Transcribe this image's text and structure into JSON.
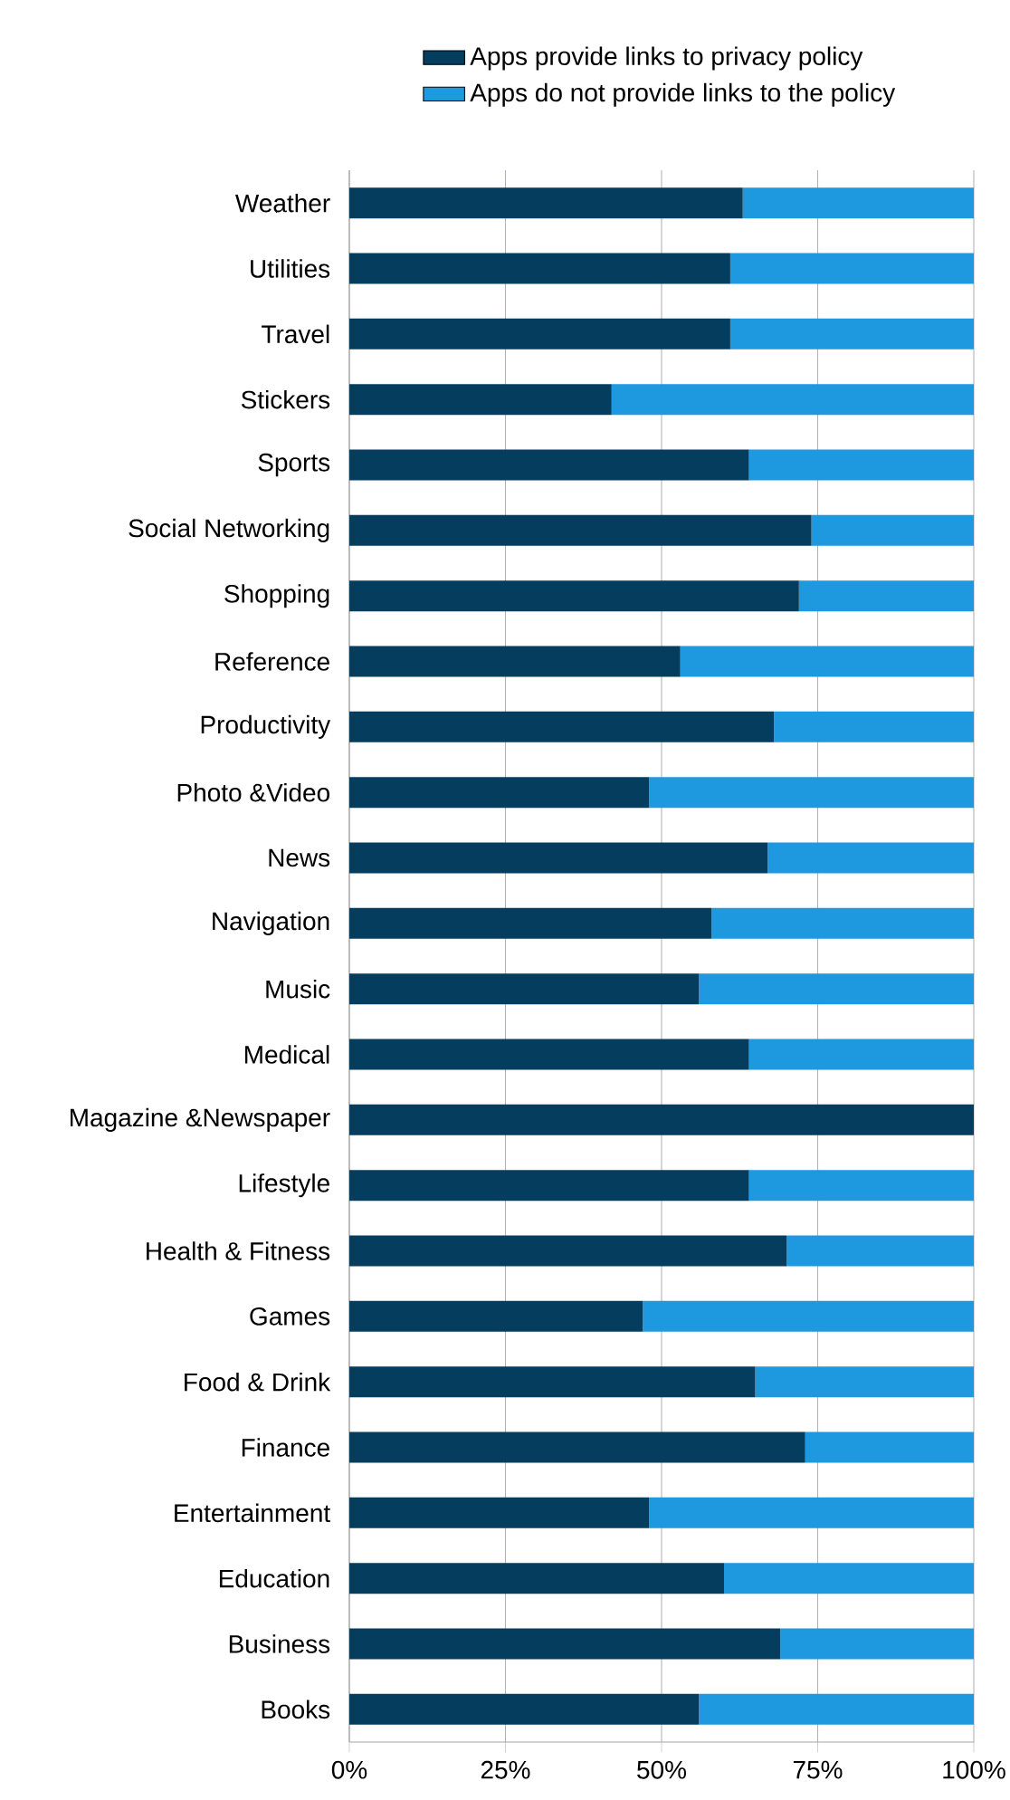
{
  "chart_data": {
    "type": "bar",
    "orientation": "horizontal",
    "stacked": true,
    "categories": [
      "Weather",
      "Utilities",
      "Travel",
      "Stickers",
      "Sports",
      "Social Networking",
      "Shopping",
      "Reference",
      "Productivity",
      "Photo &Video",
      "News",
      "Navigation",
      "Music",
      "Medical",
      "Magazine &Newspaper",
      "Lifestyle",
      "Health & Fitness",
      "Games",
      "Food & Drink",
      "Finance",
      "Entertainment",
      "Education",
      "Business",
      "Books"
    ],
    "series": [
      {
        "name": "Apps provide links to privacy policy",
        "color": "#053d5f",
        "values": [
          63,
          61,
          61,
          42,
          64,
          74,
          72,
          53,
          68,
          48,
          67,
          58,
          56,
          64,
          100,
          64,
          70,
          47,
          65,
          73,
          48,
          60,
          69,
          56
        ]
      },
      {
        "name": "Apps do not provide links to the policy",
        "color": "#1e98de",
        "values": [
          37,
          39,
          39,
          58,
          36,
          26,
          28,
          47,
          32,
          52,
          33,
          42,
          44,
          36,
          0,
          36,
          30,
          53,
          35,
          27,
          52,
          40,
          31,
          44
        ]
      }
    ],
    "xlim": [
      0,
      100
    ],
    "xticks": [
      {
        "value": 0,
        "label": "0%"
      },
      {
        "value": 25,
        "label": "25%"
      },
      {
        "value": 50,
        "label": "50%"
      },
      {
        "value": 75,
        "label": "75%"
      },
      {
        "value": 100,
        "label": "100%"
      }
    ],
    "grid": "x",
    "legend": "top"
  }
}
